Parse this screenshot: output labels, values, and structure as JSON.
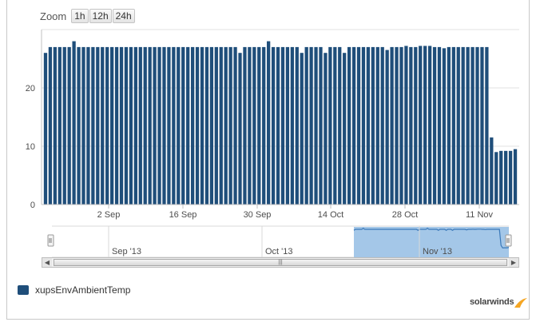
{
  "zoom": {
    "label": "Zoom",
    "options": [
      "1h",
      "12h",
      "24h"
    ]
  },
  "colors": {
    "bar": "#1f4e7a",
    "navigator_fill": "#9ac1e6",
    "navigator_line": "#3a78b8",
    "grid": "#e1e1e1",
    "brand_accent": "#f5a623"
  },
  "chart_data": {
    "type": "bar",
    "x_tick_labels": [
      "2 Sep",
      "16 Sep",
      "30 Sep",
      "14 Oct",
      "28 Oct",
      "11 Nov"
    ],
    "y_tick_labels": [
      "0",
      "10",
      "20"
    ],
    "ylim": [
      0,
      30
    ],
    "grid": "horizontal",
    "legend_position": "bottom-left",
    "series": [
      {
        "name": "xupsEnvAmbientTemp",
        "values": [
          26,
          27,
          27,
          27,
          27,
          27,
          28,
          27,
          27,
          27,
          27,
          27,
          27,
          27,
          27,
          27,
          27,
          27,
          27,
          27,
          27,
          27,
          27,
          27,
          27,
          27,
          27,
          27,
          27,
          27,
          27,
          27,
          27,
          27,
          27,
          27,
          27,
          27,
          27,
          27,
          27,
          26,
          27,
          27,
          27,
          27,
          27,
          28,
          27,
          27,
          27,
          27,
          27,
          27,
          26,
          27,
          27,
          27,
          27,
          26,
          27,
          27,
          27,
          26,
          27,
          27,
          27,
          27,
          27,
          27,
          27,
          27,
          26.5,
          27,
          27,
          27,
          27.2,
          27,
          27,
          27.2,
          27.2,
          27.2,
          27,
          27,
          26.8,
          27,
          27,
          27,
          27,
          27,
          27,
          27,
          27,
          27,
          11.5,
          9,
          9.2,
          9.2,
          9.2,
          9.5
        ]
      }
    ],
    "navigator": {
      "tick_labels": [
        "Sep '13",
        "Oct '13",
        "Nov '13"
      ]
    }
  },
  "brand": {
    "name": "solarwinds"
  }
}
